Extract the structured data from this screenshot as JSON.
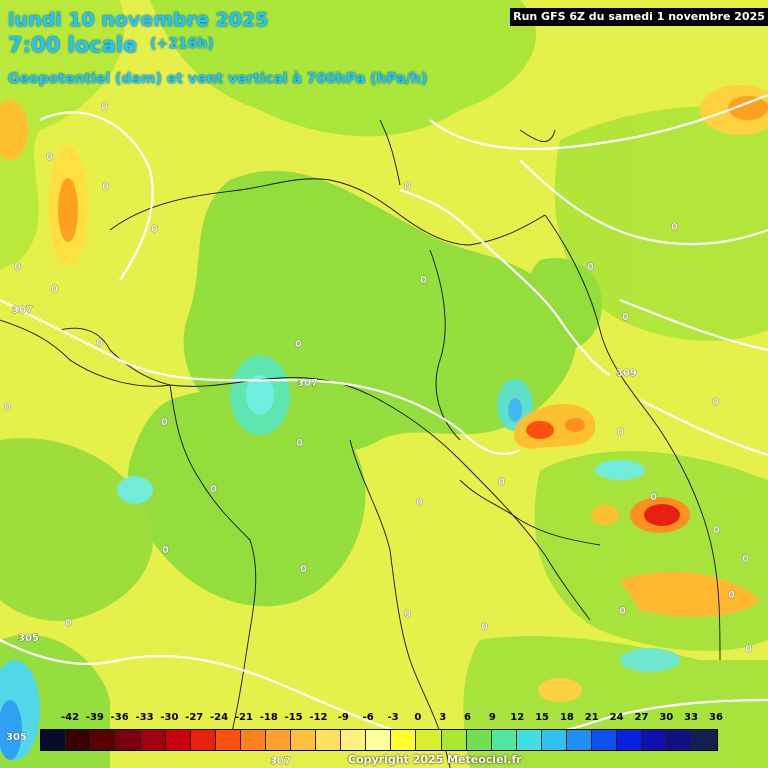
{
  "header": {
    "date": "lundi 10 novembre 2025",
    "time": "7:00 locale",
    "offset": "(+216h)",
    "parameter": "Geopotentiel (dam) et vent vertical à 700hPa (hPa/h)",
    "run": "Run GFS 6Z du samedi 1 novembre 2025"
  },
  "scale": {
    "labels": [
      "-42",
      "-39",
      "-36",
      "-33",
      "-30",
      "-27",
      "-24",
      "-21",
      "-18",
      "-15",
      "-12",
      "-9",
      "-6",
      "-3",
      "0",
      "3",
      "6",
      "9",
      "12",
      "15",
      "18",
      "21",
      "24",
      "27",
      "30",
      "33",
      "36"
    ],
    "colors": [
      "#0a0a2a",
      "#3a0000",
      "#5a0000",
      "#7a0010",
      "#a00010",
      "#c80010",
      "#e82010",
      "#ff5010",
      "#ff8020",
      "#ffa030",
      "#ffc040",
      "#ffe060",
      "#fff080",
      "#ffffa0",
      "#ffff30",
      "#d8f030",
      "#a8e830",
      "#70e050",
      "#50e8a0",
      "#40e0e0",
      "#30c0f0",
      "#2090f0",
      "#1050f0",
      "#0820e0",
      "#1010b0",
      "#101080",
      "#102050"
    ]
  },
  "contours": [
    "307",
    "309",
    "305",
    "307"
  ],
  "zero_labels": [
    "0",
    "0",
    "0",
    "0",
    "0",
    "0",
    "0",
    "0",
    "0",
    "0",
    "0",
    "0",
    "0",
    "0",
    "0",
    "0",
    "0",
    "0",
    "0",
    "0",
    "0",
    "0",
    "0",
    "0",
    "0",
    "0",
    "0",
    "0",
    "0",
    "0",
    "0",
    "0"
  ],
  "copyright": "Copyright 2025 Meteociel.fr"
}
